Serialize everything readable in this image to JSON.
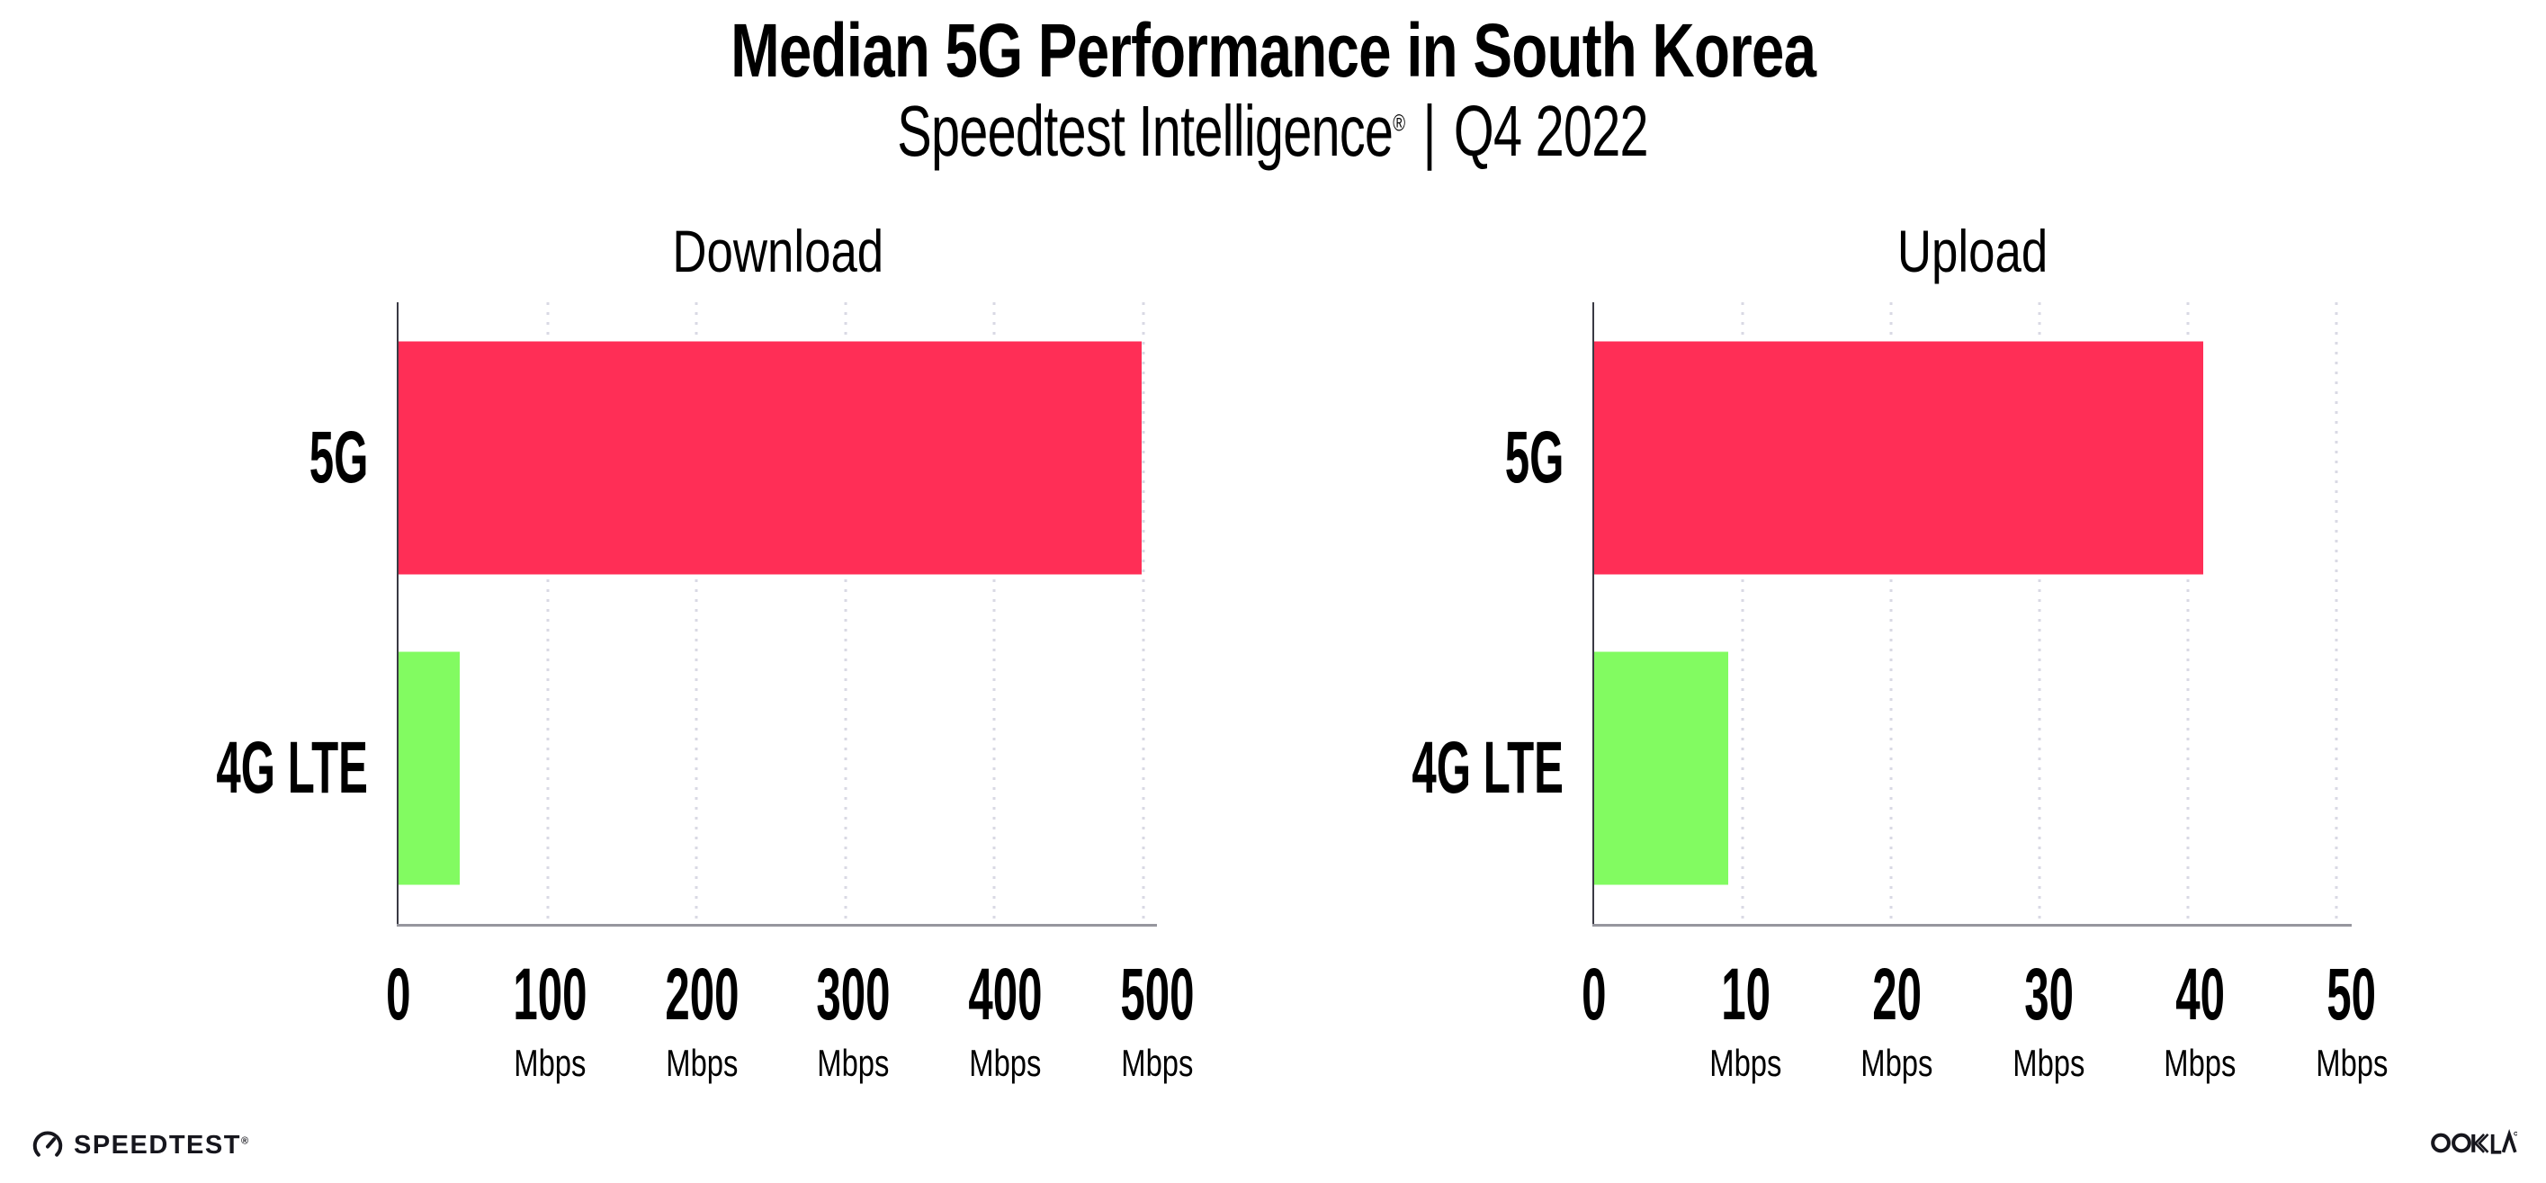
{
  "header": {
    "title": "Median 5G Performance in South Korea",
    "subtitle_product": "Speedtest Intelligence",
    "subtitle_trademark": "®",
    "subtitle_separator": "|",
    "subtitle_period": "Q4 2022"
  },
  "chart_data": [
    {
      "type": "bar",
      "orientation": "horizontal",
      "title": "Download",
      "categories": [
        "5G",
        "4G LTE"
      ],
      "values": [
        499,
        41
      ],
      "unit": "Mbps",
      "xlabel": "",
      "ylabel": "",
      "xlim": [
        0,
        500
      ],
      "xticks": [
        0,
        100,
        200,
        300,
        400,
        500
      ],
      "bar_colors": [
        "#FF2E56",
        "#82FB61"
      ],
      "grid": "dotted vertical gridlines at each tick",
      "legend": "none"
    },
    {
      "type": "bar",
      "orientation": "horizontal",
      "title": "Upload",
      "categories": [
        "5G",
        "4G LTE"
      ],
      "values": [
        41,
        9
      ],
      "unit": "Mbps",
      "xlabel": "",
      "ylabel": "",
      "xlim": [
        0,
        50
      ],
      "xticks": [
        0,
        10,
        20,
        30,
        40,
        50
      ],
      "bar_colors": [
        "#FF2E56",
        "#82FB61"
      ],
      "grid": "dotted vertical gridlines at each tick",
      "legend": "none"
    }
  ],
  "footer": {
    "speedtest_logo_text": "SPEEDTEST",
    "speedtest_logo_trademark": "®",
    "ookla_logo_text": "OOKLA",
    "ookla_logo_trademark": "®"
  },
  "colors": {
    "bar_5g": "#FF2E56",
    "bar_4g_lte": "#82FB61",
    "grid_dots": "#D9D9E4",
    "axis_line": "#96969E",
    "spine": "#3A3A44",
    "text": "#000000",
    "background": "#FFFFFF"
  }
}
